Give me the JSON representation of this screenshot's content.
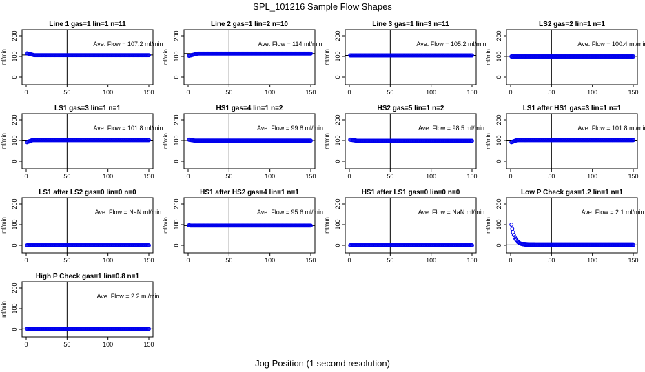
{
  "figure": {
    "title": "SPL_101216  Sample Flow Shapes",
    "xlabel": "Jog Position (1 second resolution)"
  },
  "chart_data": [
    {
      "type": "scatter",
      "title": "Line 1 gas=1 lin=1 n=11",
      "ylabel": "ml/min",
      "annotation": "Ave. Flow =  107.2  ml/min",
      "mean": 107.2,
      "xlim": [
        0,
        150
      ],
      "ylim": [
        0,
        200
      ],
      "vline_x": 50,
      "xticks": [
        0,
        50,
        100,
        150
      ],
      "yticks": [
        0,
        100,
        200
      ],
      "x_range": [
        1,
        150
      ],
      "start_value": 115,
      "settle_value": 106,
      "settle_x": 10
    },
    {
      "type": "scatter",
      "title": "Line 2 gas=1 lin=2 n=10",
      "ylabel": "ml/min",
      "annotation": "Ave. Flow =  114  ml/min",
      "mean": 114,
      "xlim": [
        0,
        150
      ],
      "ylim": [
        0,
        200
      ],
      "vline_x": 50,
      "xticks": [
        0,
        50,
        100,
        150
      ],
      "yticks": [
        0,
        100,
        200
      ],
      "x_range": [
        1,
        150
      ],
      "start_value": 103,
      "settle_value": 114,
      "settle_x": 12
    },
    {
      "type": "scatter",
      "title": "Line 3 gas=1 lin=3 n=11",
      "ylabel": "ml/min",
      "annotation": "Ave. Flow =  105.2  ml/min",
      "mean": 105.2,
      "xlim": [
        0,
        150
      ],
      "ylim": [
        0,
        200
      ],
      "vline_x": 50,
      "xticks": [
        0,
        50,
        100,
        150
      ],
      "yticks": [
        0,
        100,
        200
      ],
      "x_range": [
        1,
        150
      ],
      "start_value": 105,
      "settle_value": 105,
      "settle_x": 1
    },
    {
      "type": "scatter",
      "title": "LS2 gas=2 lin=1 n=1",
      "ylabel": "ml/min",
      "annotation": "Ave. Flow =  100.4  ml/min",
      "mean": 100.4,
      "xlim": [
        0,
        150
      ],
      "ylim": [
        0,
        200
      ],
      "vline_x": 50,
      "xticks": [
        0,
        50,
        100,
        150
      ],
      "yticks": [
        0,
        100,
        200
      ],
      "x_range": [
        1,
        150
      ],
      "start_value": 99,
      "settle_value": 100,
      "settle_x": 1
    },
    {
      "type": "scatter",
      "title": "LS1 gas=3 lin=1 n=1",
      "ylabel": "ml/min",
      "annotation": "Ave. Flow =  101.8  ml/min",
      "mean": 101.8,
      "xlim": [
        0,
        150
      ],
      "ylim": [
        0,
        200
      ],
      "vline_x": 50,
      "xticks": [
        0,
        50,
        100,
        150
      ],
      "yticks": [
        0,
        100,
        200
      ],
      "x_range": [
        1,
        150
      ],
      "start_value": 92,
      "settle_value": 102,
      "settle_x": 8
    },
    {
      "type": "scatter",
      "title": "HS1 gas=4 lin=1 n=2",
      "ylabel": "ml/min",
      "annotation": "Ave. Flow =  99.8  ml/min",
      "mean": 99.8,
      "xlim": [
        0,
        150
      ],
      "ylim": [
        0,
        200
      ],
      "vline_x": 50,
      "xticks": [
        0,
        50,
        100,
        150
      ],
      "yticks": [
        0,
        100,
        200
      ],
      "x_range": [
        1,
        150
      ],
      "start_value": 104,
      "settle_value": 99.5,
      "settle_x": 8
    },
    {
      "type": "scatter",
      "title": "HS2 gas=5 lin=1 n=2",
      "ylabel": "ml/min",
      "annotation": "Ave. Flow =  98.5  ml/min",
      "mean": 98.5,
      "xlim": [
        0,
        150
      ],
      "ylim": [
        0,
        200
      ],
      "vline_x": 50,
      "xticks": [
        0,
        50,
        100,
        150
      ],
      "yticks": [
        0,
        100,
        200
      ],
      "x_range": [
        1,
        150
      ],
      "start_value": 104,
      "settle_value": 98.3,
      "settle_x": 10
    },
    {
      "type": "scatter",
      "title": "LS1 after HS1 gas=3 lin=1 n=1",
      "ylabel": "ml/min",
      "annotation": "Ave. Flow =  101.8  ml/min",
      "mean": 101.8,
      "xlim": [
        0,
        150
      ],
      "ylim": [
        0,
        200
      ],
      "vline_x": 50,
      "xticks": [
        0,
        50,
        100,
        150
      ],
      "yticks": [
        0,
        100,
        200
      ],
      "x_range": [
        1,
        150
      ],
      "start_value": 92,
      "settle_value": 102,
      "settle_x": 8
    },
    {
      "type": "scatter",
      "title": "LS1 after LS2 gas=0 lin=0 n=0",
      "ylabel": "ml/min",
      "annotation": "Ave. Flow =  NaN  ml/min",
      "mean": null,
      "xlim": [
        0,
        150
      ],
      "ylim": [
        0,
        200
      ],
      "vline_x": 50,
      "xticks": [
        0,
        50,
        100,
        150
      ],
      "yticks": [
        0,
        100,
        200
      ],
      "x_range": [
        1,
        150
      ],
      "start_value": 0,
      "settle_value": 0,
      "settle_x": 1
    },
    {
      "type": "scatter",
      "title": "HS1 after HS2 gas=4 lin=1 n=1",
      "ylabel": "ml/min",
      "annotation": "Ave. Flow =  95.6  ml/min",
      "mean": 95.6,
      "xlim": [
        0,
        150
      ],
      "ylim": [
        0,
        200
      ],
      "vline_x": 50,
      "xticks": [
        0,
        50,
        100,
        150
      ],
      "yticks": [
        0,
        100,
        200
      ],
      "x_range": [
        1,
        150
      ],
      "start_value": 97,
      "settle_value": 95.5,
      "settle_x": 3
    },
    {
      "type": "scatter",
      "title": "HS1 after LS1 gas=0 lin=0 n=0",
      "ylabel": "ml/min",
      "annotation": "Ave. Flow =  NaN  ml/min",
      "mean": null,
      "xlim": [
        0,
        150
      ],
      "ylim": [
        0,
        200
      ],
      "vline_x": 50,
      "xticks": [
        0,
        50,
        100,
        150
      ],
      "yticks": [
        0,
        100,
        200
      ],
      "x_range": [
        1,
        150
      ],
      "start_value": 0,
      "settle_value": 0,
      "settle_x": 1
    },
    {
      "type": "scatter",
      "title": "Low P Check gas=1.2 lin=1 n=1",
      "ylabel": "ml/min",
      "annotation": "Ave. Flow =  2.1  ml/min",
      "mean": 2.1,
      "xlim": [
        0,
        150
      ],
      "ylim": [
        0,
        200
      ],
      "vline_x": 50,
      "xticks": [
        0,
        50,
        100,
        150
      ],
      "yticks": [
        0,
        100,
        200
      ],
      "x_range": [
        1,
        150
      ],
      "start_value": 100,
      "settle_value": 1.5,
      "settle_x": 18,
      "decay": "exponential"
    },
    {
      "type": "scatter",
      "title": "High P Check gas=1 lin=0.8 n=1",
      "ylabel": "ml/min",
      "annotation": "Ave. Flow =  2.2  ml/min",
      "mean": 2.2,
      "xlim": [
        0,
        150
      ],
      "ylim": [
        0,
        200
      ],
      "vline_x": 50,
      "xticks": [
        0,
        50,
        100,
        150
      ],
      "yticks": [
        0,
        100,
        200
      ],
      "x_range": [
        1,
        150
      ],
      "start_value": 2.2,
      "settle_value": 2.2,
      "settle_x": 1
    }
  ],
  "colors": {
    "points": "#0000ee",
    "axes": "#000000",
    "text": "#000000",
    "background": "#ffffff"
  }
}
